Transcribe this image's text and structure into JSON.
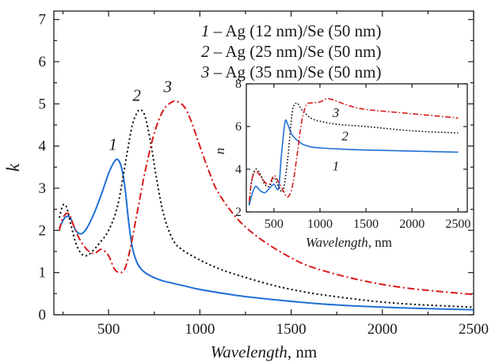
{
  "chart_data": [
    {
      "type": "line",
      "title": "",
      "xlabel": "Wavelength, nm",
      "ylabel": "k",
      "xlim": [
        200,
        2500
      ],
      "ylim": [
        0,
        7.2
      ],
      "xticks": [
        "500",
        "1000",
        "1500",
        "2000",
        "2500"
      ],
      "yticks": [
        "0",
        "1",
        "2",
        "3",
        "4",
        "5",
        "6",
        "7"
      ],
      "legend": {
        "placement": "top-right",
        "entries": [
          {
            "num": "1",
            "text": " – Ag (12 nm)/Se (50 nm)"
          },
          {
            "num": "2",
            "text": " – Ag (25 nm)/Se (50 nm)"
          },
          {
            "num": "3",
            "text": " – Ag (35 nm)/Se (50 nm)"
          }
        ]
      },
      "series": [
        {
          "label": "1",
          "color": "#1f6fd6",
          "dash": "solid",
          "x": [
            230,
            260,
            290,
            320,
            350,
            380,
            420,
            460,
            500,
            530,
            550,
            570,
            590,
            610,
            630,
            660,
            700,
            750,
            800,
            900,
            1000,
            1200,
            1400,
            1600,
            1800,
            2000,
            2200,
            2400,
            2500
          ],
          "y": [
            2.05,
            2.3,
            2.3,
            2.0,
            1.92,
            2.05,
            2.4,
            2.85,
            3.35,
            3.62,
            3.68,
            3.5,
            3.0,
            2.2,
            1.6,
            1.2,
            1.0,
            0.88,
            0.8,
            0.7,
            0.6,
            0.46,
            0.36,
            0.28,
            0.22,
            0.18,
            0.15,
            0.13,
            0.12
          ]
        },
        {
          "label": "2",
          "color": "#111111",
          "dash": "dot",
          "x": [
            230,
            250,
            270,
            290,
            320,
            350,
            380,
            410,
            450,
            500,
            550,
            600,
            630,
            660,
            680,
            700,
            730,
            760,
            800,
            850,
            900,
            1000,
            1100,
            1200,
            1400,
            1600,
            1800,
            2000,
            2200,
            2500
          ],
          "y": [
            2.3,
            2.6,
            2.55,
            2.2,
            1.7,
            1.45,
            1.4,
            1.5,
            1.7,
            2.0,
            2.6,
            3.8,
            4.5,
            4.82,
            4.85,
            4.7,
            4.1,
            3.3,
            2.4,
            1.8,
            1.55,
            1.3,
            1.1,
            0.95,
            0.7,
            0.52,
            0.4,
            0.3,
            0.24,
            0.18
          ]
        },
        {
          "label": "3",
          "color": "#d81b1b",
          "dash": "dashdot",
          "x": [
            230,
            250,
            280,
            310,
            340,
            380,
            420,
            460,
            500,
            530,
            560,
            590,
            620,
            660,
            700,
            750,
            800,
            850,
            880,
            920,
            960,
            1000,
            1050,
            1100,
            1200,
            1300,
            1400,
            1500,
            1600,
            1800,
            2000,
            2200,
            2500
          ],
          "y": [
            2.0,
            2.3,
            2.4,
            2.1,
            1.8,
            1.55,
            1.45,
            1.55,
            1.4,
            1.1,
            1.0,
            1.1,
            1.6,
            2.5,
            3.4,
            4.3,
            4.85,
            5.05,
            5.05,
            4.9,
            4.5,
            4.0,
            3.4,
            2.9,
            2.3,
            1.9,
            1.6,
            1.35,
            1.15,
            0.9,
            0.72,
            0.6,
            0.48
          ]
        }
      ],
      "curve_labels": [
        "1",
        "2",
        "3"
      ]
    },
    {
      "type": "line",
      "title": "",
      "xlabel": "Wavelength, nm",
      "ylabel": "n",
      "xlim": [
        200,
        2600
      ],
      "ylim": [
        2,
        8
      ],
      "xticks": [
        "500",
        "1000",
        "1500",
        "2000",
        "2500"
      ],
      "yticks": [
        "2",
        "4",
        "6",
        "8"
      ],
      "series": [
        {
          "label": "1",
          "color": "#1f6fd6",
          "dash": "solid",
          "x": [
            230,
            260,
            300,
            350,
            400,
            450,
            500,
            550,
            580,
            620,
            650,
            700,
            800,
            900,
            1000,
            1200,
            1500,
            2000,
            2500
          ],
          "y": [
            2.3,
            2.8,
            3.2,
            3.0,
            2.9,
            3.1,
            3.3,
            3.1,
            4.6,
            6.2,
            6.1,
            5.6,
            5.2,
            5.05,
            5.0,
            4.95,
            4.9,
            4.85,
            4.8
          ],
          "end_label": "1"
        },
        {
          "label": "2",
          "color": "#111111",
          "dash": "dot",
          "x": [
            230,
            260,
            300,
            350,
            400,
            450,
            500,
            550,
            600,
            650,
            700,
            750,
            800,
            900,
            1000,
            1200,
            1500,
            2000,
            2500
          ],
          "y": [
            2.4,
            3.5,
            4.0,
            3.8,
            3.3,
            3.2,
            3.6,
            3.2,
            3.0,
            4.5,
            6.7,
            7.1,
            6.8,
            6.4,
            6.25,
            6.1,
            6.0,
            5.8,
            5.7
          ],
          "end_label": "2"
        },
        {
          "label": "3",
          "color": "#d81b1b",
          "dash": "dashdot",
          "x": [
            230,
            260,
            300,
            350,
            400,
            450,
            500,
            550,
            600,
            650,
            700,
            750,
            800,
            850,
            900,
            1000,
            1100,
            1300,
            1500,
            2000,
            2500
          ],
          "y": [
            2.5,
            3.5,
            3.9,
            3.7,
            3.4,
            3.3,
            3.7,
            3.4,
            3.0,
            2.7,
            3.2,
            4.6,
            6.2,
            7.0,
            7.1,
            7.15,
            7.3,
            7.0,
            6.8,
            6.6,
            6.4
          ],
          "end_label": "3"
        }
      ]
    }
  ]
}
